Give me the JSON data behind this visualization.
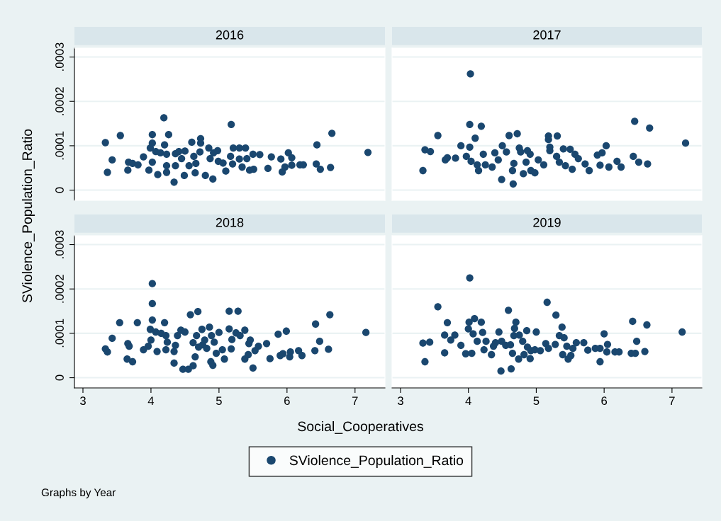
{
  "chart_data": [
    {
      "type": "scatter",
      "title": "2016",
      "xlabel": "Social_Cooperatives",
      "ylabel": "SViolence_Population_Ratio",
      "annotations": [
        "Graphs by Year"
      ],
      "legend": "bottom",
      "grid": "y",
      "marker": "circle",
      "tick_labels": "y",
      "xlim": [
        2.875,
        7.44
      ],
      "xticks": [
        3,
        4,
        5,
        6,
        7
      ],
      "ylim": [
        -2.3e-05,
        0.00032
      ],
      "yticks": [
        {
          "value": 0,
          "label": "0"
        },
        {
          "value": 0.0001,
          "label": ".0001"
        },
        {
          "value": 0.0002,
          "label": ".0002"
        },
        {
          "value": 0.0003,
          "label": ".0003"
        }
      ],
      "series": [
        {
          "name": "SViolence_Population_Ratio",
          "color": "#1a476f",
          "x": [
            3.33,
            3.36,
            3.43,
            3.55,
            3.66,
            3.67,
            3.73,
            3.81,
            3.89,
            3.97,
            3.99,
            4.02,
            4.02,
            4.02,
            4.07,
            4.1,
            4.14,
            4.19,
            4.2,
            4.23,
            4.23,
            4.23,
            4.26,
            4.34,
            4.36,
            4.36,
            4.41,
            4.45,
            4.49,
            4.5,
            4.56,
            4.6,
            4.63,
            4.65,
            4.66,
            4.72,
            4.73,
            4.73,
            4.8,
            4.85,
            4.87,
            4.91,
            4.92,
            4.98,
            4.99,
            5.06,
            5.1,
            5.17,
            5.18,
            5.2,
            5.21,
            5.3,
            5.3,
            5.34,
            5.39,
            5.41,
            5.45,
            5.5,
            5.51,
            5.6,
            5.72,
            5.77,
            5.91,
            5.93,
            5.97,
            6.02,
            6.07,
            6.07,
            6.19,
            6.24,
            6.43,
            6.44,
            6.49,
            6.64,
            6.66,
            7.19
          ],
          "values": [
            0.000107,
            4e-05,
            6.8e-05,
            0.000123,
            4.5e-05,
            6.3e-05,
            6e-05,
            5.7e-05,
            7.5e-05,
            4.5e-05,
            9.5e-05,
            0.000125,
            0.000106,
            6.3e-05,
            8.7e-05,
            3.5e-05,
            8.4e-05,
            0.000163,
            0.000102,
            8.1e-05,
            5.5e-05,
            4e-05,
            0.000125,
            1.8e-05,
            8.2e-05,
            5.5e-05,
            8.7e-05,
            7.1e-05,
            3.3e-05,
            8.8e-05,
            5.5e-05,
            0.000108,
            7.6e-05,
            3.9e-05,
            6e-05,
            8.6e-05,
            0.000116,
            0.000106,
            3.3e-05,
            9.5e-05,
            7.1e-05,
            2.5e-05,
            8.4e-05,
            8.9e-05,
            6.5e-05,
            6.1e-05,
            4.3e-05,
            7.6e-05,
            0.000148,
            5.9e-05,
            9.5e-05,
            9.5e-05,
            7e-05,
            5.2e-05,
            9.5e-05,
            7.1e-05,
            4.5e-05,
            8.1e-05,
            4.7e-05,
            8e-05,
            4.9e-05,
            7.5e-05,
            7e-05,
            4.1e-05,
            5.2e-05,
            8.4e-05,
            7.3e-05,
            5.6e-05,
            5.7e-05,
            5.7e-05,
            5.9e-05,
            0.000102,
            4.7e-05,
            5.1e-05,
            0.000128,
            8.5e-05
          ]
        }
      ]
    },
    {
      "type": "scatter",
      "title": "2017",
      "grid": "y",
      "marker": "circle",
      "tick_labels": false,
      "xlim": [
        2.875,
        7.44
      ],
      "xticks": [
        3,
        4,
        5,
        6,
        7
      ],
      "ylim": [
        -2.3e-05,
        0.00032
      ],
      "yticks": [
        {
          "value": 0,
          "label": null
        },
        {
          "value": 0.0001,
          "label": null
        },
        {
          "value": 0.0002,
          "label": null
        },
        {
          "value": 0.0003,
          "label": null
        }
      ],
      "series": [
        {
          "color": "#1a476f",
          "x": [
            3.33,
            3.36,
            3.44,
            3.55,
            3.66,
            3.69,
            3.81,
            3.89,
            3.97,
            4.02,
            4.02,
            4.03,
            4.04,
            4.1,
            4.13,
            4.15,
            4.19,
            4.22,
            4.25,
            4.35,
            4.39,
            4.44,
            4.49,
            4.5,
            4.56,
            4.6,
            4.65,
            4.66,
            4.67,
            4.72,
            4.75,
            4.77,
            4.81,
            4.85,
            4.87,
            4.91,
            4.92,
            4.98,
            5.03,
            5.11,
            5.18,
            5.18,
            5.2,
            5.2,
            5.3,
            5.31,
            5.34,
            5.4,
            5.43,
            5.5,
            5.53,
            5.57,
            5.62,
            5.72,
            5.78,
            5.9,
            5.94,
            5.97,
            6.03,
            6.07,
            6.19,
            6.25,
            6.43,
            6.45,
            6.51,
            6.64,
            6.67,
            7.2
          ],
          "values": [
            4.4e-05,
            9.1e-05,
            8.7e-05,
            0.000123,
            6.8e-05,
            7.3e-05,
            7.2e-05,
            0.0001,
            7.6e-05,
            0.000148,
            9.7e-05,
            0.000262,
            6.5e-05,
            0.000117,
            5.7e-05,
            4.4e-05,
            0.000144,
            8.1e-05,
            5.7e-05,
            5.2e-05,
            8.4e-05,
            6.8e-05,
            2.4e-05,
            0.0001,
            8.6e-05,
            0.000123,
            4.4e-05,
            1.4e-05,
            6e-05,
            0.000127,
            9.5e-05,
            8.6e-05,
            3.7e-05,
            6.3e-05,
            8.9e-05,
            8.1e-05,
            4.4e-05,
            3.9e-05,
            6.8e-05,
            5.7e-05,
            0.000122,
            0.000114,
            9.7e-05,
            8.9e-05,
            7.6e-05,
            0.000122,
            6.3e-05,
            9.3e-05,
            5.5e-05,
            9.2e-05,
            4.7e-05,
            8.1e-05,
            7.1e-05,
            5.9e-05,
            4.4e-05,
            7.9e-05,
            5.6e-05,
            8.4e-05,
            0.0001,
            5.2e-05,
            6.5e-05,
            5.2e-05,
            7.6e-05,
            0.000155,
            6.3e-05,
            5.9e-05,
            0.00014,
            0.000106
          ]
        }
      ]
    },
    {
      "type": "scatter",
      "title": "2018",
      "grid": "y",
      "marker": "circle",
      "xlim": [
        2.875,
        7.44
      ],
      "xticks": [
        3,
        4,
        5,
        6,
        7
      ],
      "ylim": [
        -2.3e-05,
        0.00032
      ],
      "yticks": [
        {
          "value": 0,
          "label": "0"
        },
        {
          "value": 0.0001,
          "label": ".0001"
        },
        {
          "value": 0.0002,
          "label": ".0002"
        },
        {
          "value": 0.0003,
          "label": ".0003"
        }
      ],
      "series": [
        {
          "color": "#1a476f",
          "x": [
            3.33,
            3.36,
            3.43,
            3.54,
            3.65,
            3.66,
            3.68,
            3.73,
            3.8,
            3.89,
            3.96,
            4.02,
            4.02,
            4.02,
            3.99,
            4.0,
            4.07,
            4.09,
            4.15,
            4.2,
            4.22,
            4.22,
            4.24,
            4.34,
            4.34,
            4.36,
            4.39,
            4.44,
            4.47,
            4.5,
            4.55,
            4.58,
            4.62,
            4.62,
            4.65,
            4.67,
            4.69,
            4.7,
            4.75,
            4.76,
            4.79,
            4.82,
            4.86,
            4.88,
            4.89,
            4.91,
            4.93,
            4.96,
            5.0,
            5.05,
            5.08,
            5.15,
            5.15,
            5.18,
            5.19,
            5.25,
            5.28,
            5.31,
            5.38,
            5.38,
            5.43,
            5.44,
            5.46,
            5.5,
            5.53,
            5.58,
            5.7,
            5.75,
            5.87,
            5.9,
            5.94,
            5.99,
            6.04,
            6.05,
            6.17,
            6.22,
            6.41,
            6.42,
            6.48,
            6.61,
            6.63,
            7.16
          ],
          "values": [
            6.5e-05,
            5.8e-05,
            8.9e-05,
            0.000124,
            4.2e-05,
            7.7e-05,
            7.1e-05,
            3.6e-05,
            0.000124,
            6.3e-05,
            7.1e-05,
            0.000212,
            0.000167,
            0.00013,
            0.000109,
            8.5e-05,
            0.000103,
            5.9e-05,
            0.0001,
            0.000124,
            9.5e-05,
            6.3e-05,
            8e-05,
            3.3e-05,
            5.9e-05,
            7.3e-05,
            9.5e-05,
            0.000107,
            1.9e-05,
            0.000103,
            1.9e-05,
            0.000142,
            2.7e-05,
            7.9e-05,
            4.7e-05,
            9.5e-05,
            0.000149,
            6.9e-05,
            0.000109,
            7.4e-05,
            8.5e-05,
            6.6e-05,
            0.000114,
            3.6e-05,
            9.5e-05,
            2.8e-05,
            8e-05,
            5.5e-05,
            0.000102,
            6.3e-05,
            4.2e-05,
            0.00015,
            0.00011,
            6.5e-05,
            8.6e-05,
            0.000101,
            0.00015,
            9.5e-05,
            0.000107,
            4.2e-05,
            5.2e-05,
            7.7e-05,
            8.5e-05,
            2.2e-05,
            6.1e-05,
            7.1e-05,
            7.7e-05,
            4.3e-05,
            9.8e-05,
            5e-05,
            5.4e-05,
            0.000105,
            4.7e-05,
            5.8e-05,
            6.1e-05,
            5e-05,
            6.1e-05,
            0.000121,
            8.2e-05,
            6.4e-05,
            0.000142,
            0.000102
          ]
        }
      ]
    },
    {
      "type": "scatter",
      "title": "2019",
      "grid": "y",
      "marker": "circle",
      "tick_labels": "x",
      "xlim": [
        2.875,
        7.44
      ],
      "xticks": [
        3,
        4,
        5,
        6,
        7
      ],
      "ylim": [
        -2.3e-05,
        0.00032
      ],
      "yticks": [
        {
          "value": 0,
          "label": null
        },
        {
          "value": 0.0001,
          "label": null
        },
        {
          "value": 0.0002,
          "label": null
        },
        {
          "value": 0.0003,
          "label": null
        }
      ],
      "series": [
        {
          "color": "#1a476f",
          "x": [
            3.33,
            3.36,
            3.43,
            3.55,
            3.65,
            3.65,
            3.69,
            3.74,
            3.8,
            3.89,
            3.96,
            4.0,
            4.01,
            4.02,
            4.05,
            4.07,
            4.09,
            4.13,
            4.19,
            4.21,
            4.23,
            4.26,
            4.34,
            4.37,
            4.4,
            4.45,
            4.48,
            4.49,
            4.55,
            4.59,
            4.62,
            4.63,
            4.65,
            4.67,
            4.68,
            4.7,
            4.74,
            4.75,
            4.8,
            4.82,
            4.86,
            4.87,
            4.91,
            4.92,
            4.98,
            5.0,
            5.06,
            5.14,
            5.16,
            5.18,
            5.28,
            5.29,
            5.34,
            5.38,
            5.39,
            5.41,
            5.45,
            5.47,
            5.51,
            5.54,
            5.59,
            5.7,
            5.76,
            5.87,
            5.94,
            5.94,
            6.0,
            6.04,
            6.05,
            6.16,
            6.22,
            6.4,
            6.42,
            6.46,
            6.48,
            6.6,
            6.63,
            7.15
          ],
          "values": [
            7.8e-05,
            3.6e-05,
            8e-05,
            0.00016,
            5.6e-05,
            9.6e-05,
            0.000124,
            8.5e-05,
            9.6e-05,
            7.3e-05,
            5.4e-05,
            0.00011,
            0.000125,
            0.000225,
            5.5e-05,
            9.9e-05,
            0.000133,
            8.2e-05,
            0.000125,
            0.000102,
            6.3e-05,
            8.2e-05,
            5.2e-05,
            7.1e-05,
            7.9e-05,
            0.000103,
            1.5e-05,
            8.2e-05,
            7.3e-05,
            0.000152,
            7.4e-05,
            2e-05,
            5.5e-05,
            9.5e-05,
            0.000111,
            0.000125,
            4.2e-05,
            9.6e-05,
            8.2e-05,
            5.2e-05,
            0.000106,
            6.9e-05,
            4.3e-05,
            6.1e-05,
            6.3e-05,
            0.000103,
            6.1e-05,
            7.7e-05,
            0.00017,
            6.6e-05,
            7.5e-05,
            0.000141,
            9.5e-05,
            0.000114,
            5.2e-05,
            9e-05,
            7.1e-05,
            4.2e-05,
            5e-05,
            6.6e-05,
            7.9e-05,
            7.9e-05,
            6.2e-05,
            6.6e-05,
            3.6e-05,
            6.6e-05,
            9.9e-05,
            5.8e-05,
            7.5e-05,
            5.8e-05,
            5.8e-05,
            5.5e-05,
            0.000127,
            5.5e-05,
            8.2e-05,
            5.9e-05,
            0.000119,
            0.000103
          ]
        }
      ]
    }
  ]
}
